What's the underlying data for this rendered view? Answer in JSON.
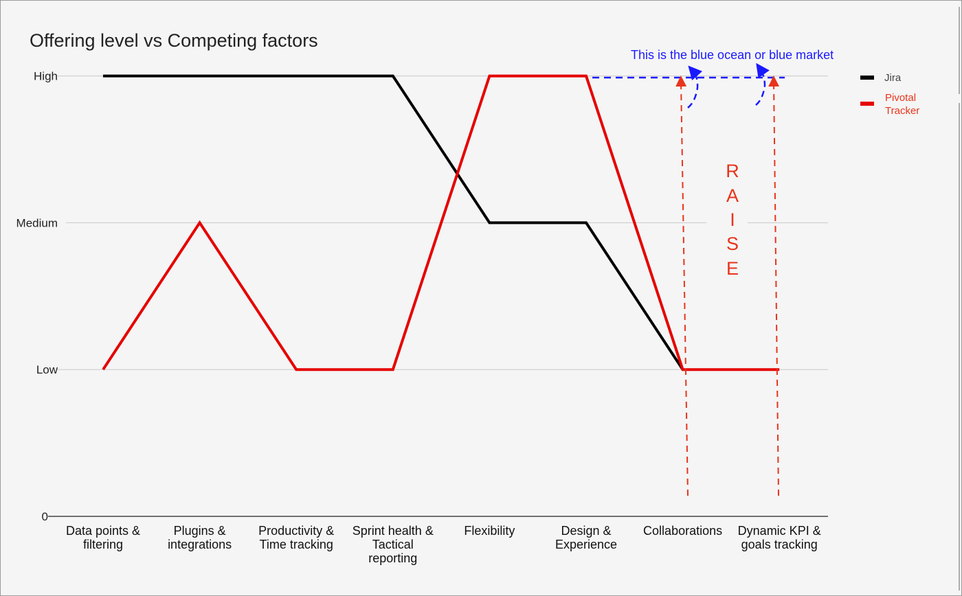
{
  "chart_data": {
    "type": "line",
    "title": "Offering level vs Competing factors",
    "categories": [
      [
        "Data points &",
        "filtering"
      ],
      [
        "Plugins &",
        "integrations"
      ],
      [
        "Productivity &",
        "Time tracking"
      ],
      [
        "Sprint health &",
        "Tactical",
        "reporting"
      ],
      [
        "Flexibility"
      ],
      [
        "Design &",
        "Experience"
      ],
      [
        "Collaborations"
      ],
      [
        "Dynamic KPI &",
        "goals tracking"
      ]
    ],
    "y_ticks": [
      {
        "value": 0,
        "label": "0"
      },
      {
        "value": 1,
        "label": "Low"
      },
      {
        "value": 2,
        "label": "Medium"
      },
      {
        "value": 3,
        "label": "High"
      }
    ],
    "ylim": [
      0,
      3
    ],
    "grid": true,
    "legend_position": "right",
    "series": [
      {
        "name": "Jira",
        "color": "#000000",
        "values": [
          3,
          3,
          3,
          3,
          2,
          2,
          1,
          null
        ]
      },
      {
        "name": "Pivotal Tracker",
        "legend_lines": [
          "Pivotal",
          "Tracker"
        ],
        "color": "#e60000",
        "values": [
          1,
          2,
          1,
          1,
          3,
          3,
          1,
          1
        ]
      }
    ],
    "annotations": {
      "blue_text": "This is the blue ocean or blue market",
      "blue_color": "#1a1aff",
      "raise_letters": [
        "R",
        "A",
        "I",
        "S",
        "E"
      ],
      "raise_color": "#e8341c"
    }
  }
}
